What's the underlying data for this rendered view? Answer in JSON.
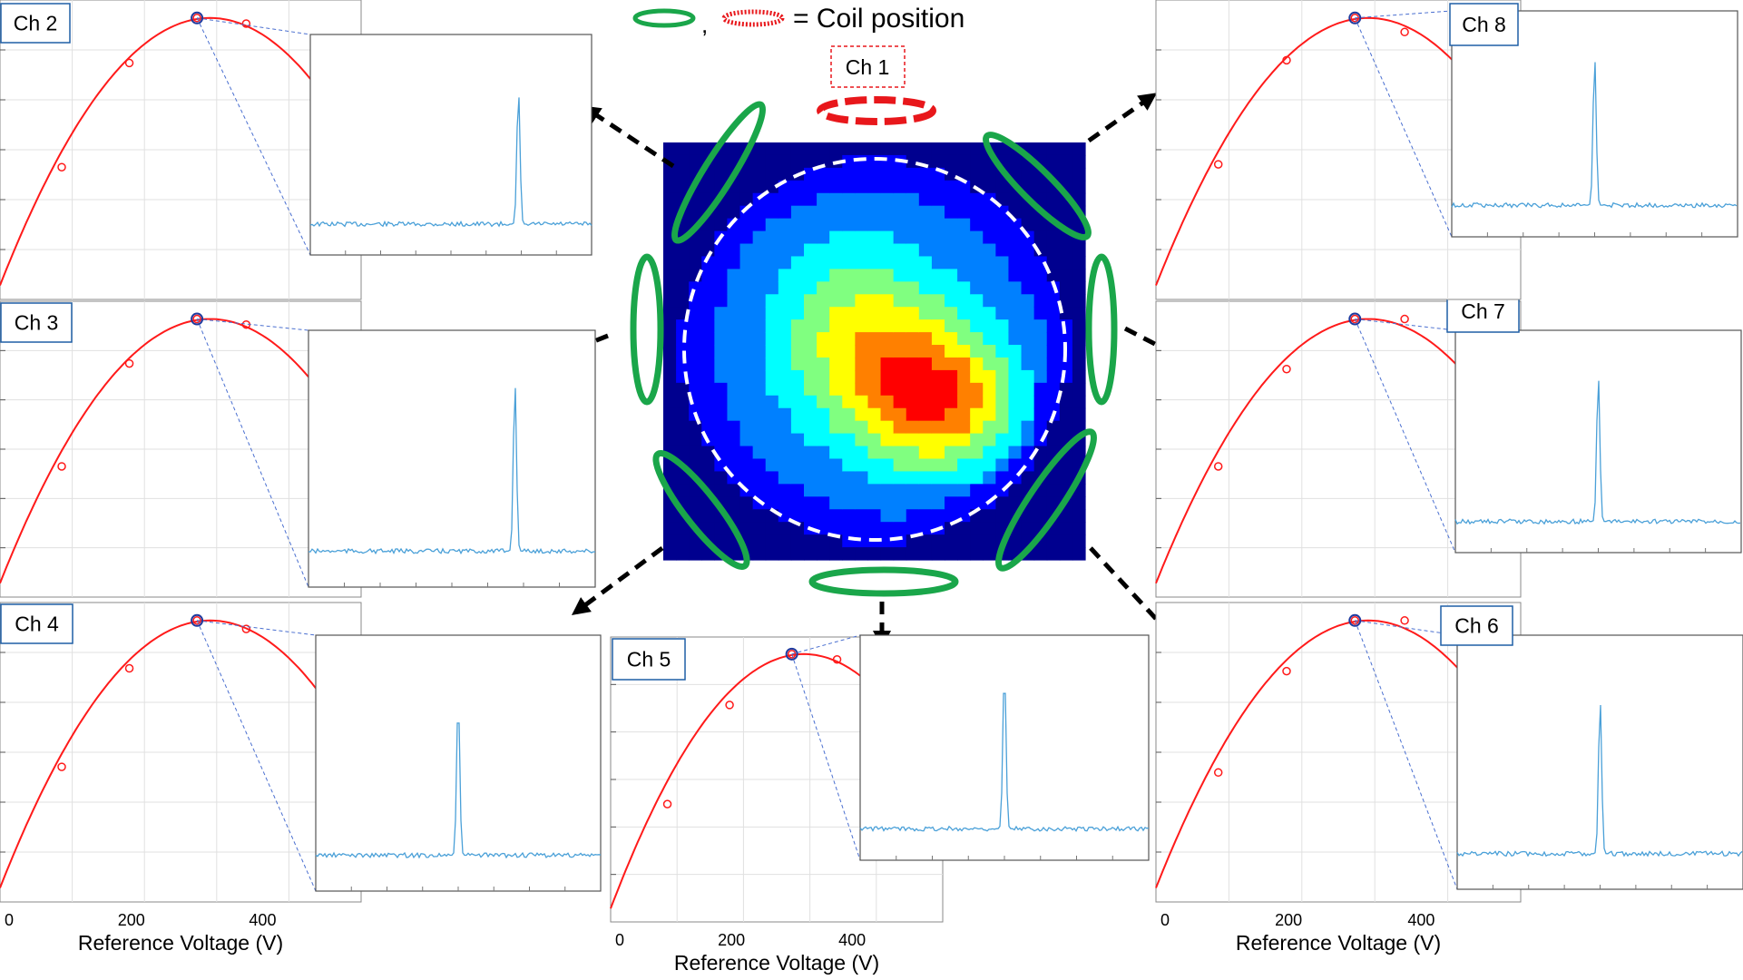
{
  "legend": {
    "separator": ",",
    "text": "= Coil position",
    "colors": {
      "active": "#1aa64a",
      "reference": "#e8171b"
    }
  },
  "center": {
    "label": "Ch 1",
    "colormap": [
      "#00008f",
      "#0000ff",
      "#0080ff",
      "#00ffff",
      "#80ff80",
      "#ffff00",
      "#ff8000",
      "#ff0000",
      "#800000"
    ]
  },
  "axis": {
    "xlabel": "Reference Voltage (V)",
    "ticks": [
      "0",
      "200",
      "400"
    ]
  },
  "colors": {
    "curve": "#ff1a1a",
    "selected_marker": "#1f3a9e",
    "spectrum": "#4aa0d8",
    "label_border": "#1f5fa6",
    "grid": "#e0e0e0"
  },
  "panels": [
    {
      "id": "ch2",
      "label": "Ch 2",
      "chart_data": {
        "type": "line",
        "title": "Ch 2",
        "xlabel": "Reference Voltage (V)",
        "xlim": [
          0,
          550
        ],
        "ylim": [
          0,
          1.0
        ],
        "points": [
          {
            "x": 94,
            "y": 0.47
          },
          {
            "x": 197,
            "y": 0.84
          },
          {
            "x": 300,
            "y": 1.0
          },
          {
            "x": 375,
            "y": 0.98
          }
        ],
        "selected_x": 300,
        "spectrum": {
          "peak_fraction": 0.74,
          "peak_height": 0.75
        }
      }
    },
    {
      "id": "ch3",
      "label": "Ch 3",
      "chart_data": {
        "type": "line",
        "title": "Ch 3",
        "xlabel": "Reference Voltage (V)",
        "xlim": [
          0,
          550
        ],
        "ylim": [
          0,
          1.0
        ],
        "points": [
          {
            "x": 94,
            "y": 0.47
          },
          {
            "x": 197,
            "y": 0.84
          },
          {
            "x": 300,
            "y": 1.0
          },
          {
            "x": 375,
            "y": 0.98
          }
        ],
        "selected_x": 300,
        "spectrum": {
          "peak_fraction": 0.72,
          "peak_height": 0.8
        }
      }
    },
    {
      "id": "ch4",
      "label": "Ch 4",
      "chart_data": {
        "type": "line",
        "title": "Ch 4",
        "xlabel": "Reference Voltage (V)",
        "xlim": [
          0,
          550
        ],
        "ylim": [
          0,
          1.0
        ],
        "points": [
          {
            "x": 94,
            "y": 0.48
          },
          {
            "x": 197,
            "y": 0.83
          },
          {
            "x": 300,
            "y": 1.0
          },
          {
            "x": 375,
            "y": 0.97
          }
        ],
        "selected_x": 300,
        "spectrum": {
          "peak_fraction": 0.5,
          "peak_height": 0.75
        }
      }
    },
    {
      "id": "ch5",
      "label": "Ch 5",
      "chart_data": {
        "type": "line",
        "title": "Ch 5",
        "xlabel": "Reference Voltage (V)",
        "xlim": [
          0,
          550
        ],
        "ylim": [
          0,
          1.0
        ],
        "points": [
          {
            "x": 94,
            "y": 0.44
          },
          {
            "x": 197,
            "y": 0.81
          },
          {
            "x": 300,
            "y": 1.0
          },
          {
            "x": 375,
            "y": 0.98
          }
        ],
        "selected_x": 300,
        "spectrum": {
          "peak_fraction": 0.5,
          "peak_height": 0.85
        }
      }
    },
    {
      "id": "ch6",
      "label": "Ch 6",
      "chart_data": {
        "type": "line",
        "title": "Ch 6",
        "xlabel": "Reference Voltage (V)",
        "xlim": [
          0,
          550
        ],
        "ylim": [
          0,
          1.0
        ],
        "points": [
          {
            "x": 94,
            "y": 0.46
          },
          {
            "x": 197,
            "y": 0.82
          },
          {
            "x": 300,
            "y": 1.0
          },
          {
            "x": 375,
            "y": 1.0
          }
        ],
        "selected_x": 300,
        "spectrum": {
          "peak_fraction": 0.5,
          "peak_height": 0.75
        }
      }
    },
    {
      "id": "ch7",
      "label": "Ch 7",
      "chart_data": {
        "type": "line",
        "title": "Ch 7",
        "xlabel": "Reference Voltage (V)",
        "xlim": [
          0,
          550
        ],
        "ylim": [
          0,
          1.0
        ],
        "points": [
          {
            "x": 94,
            "y": 0.47
          },
          {
            "x": 197,
            "y": 0.82
          },
          {
            "x": 300,
            "y": 1.0
          },
          {
            "x": 375,
            "y": 1.0
          }
        ],
        "selected_x": 300,
        "spectrum": {
          "peak_fraction": 0.5,
          "peak_height": 0.8
        }
      }
    },
    {
      "id": "ch8",
      "label": "Ch 8",
      "chart_data": {
        "type": "line",
        "title": "Ch 8",
        "xlabel": "Reference Voltage (V)",
        "xlim": [
          0,
          550
        ],
        "ylim": [
          0,
          1.0
        ],
        "points": [
          {
            "x": 94,
            "y": 0.48
          },
          {
            "x": 197,
            "y": 0.85
          },
          {
            "x": 300,
            "y": 1.0
          },
          {
            "x": 375,
            "y": 0.95
          }
        ],
        "selected_x": 300,
        "spectrum": {
          "peak_fraction": 0.5,
          "peak_height": 0.8
        }
      }
    }
  ]
}
